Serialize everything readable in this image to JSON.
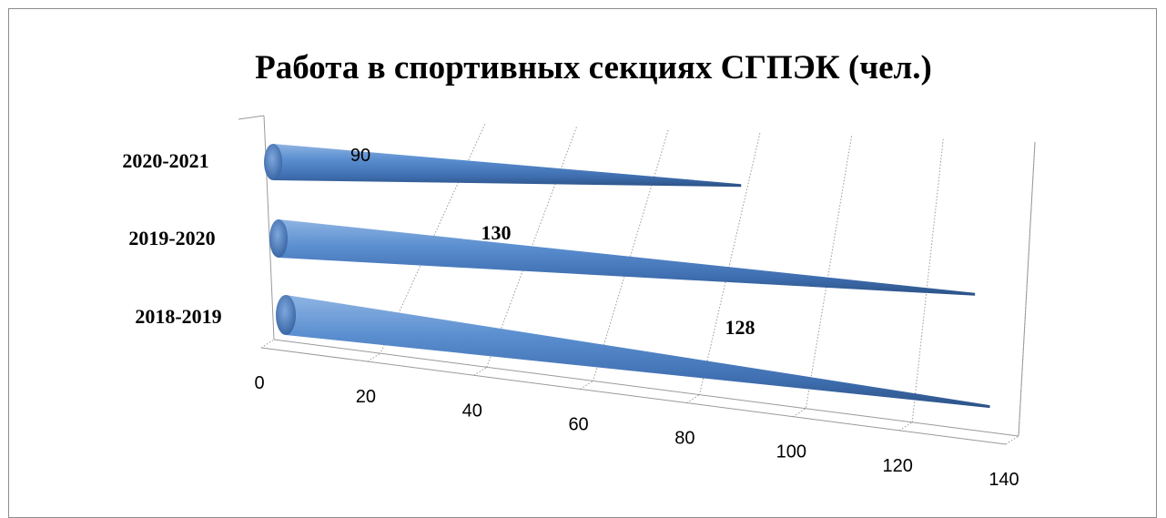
{
  "chart_data": {
    "type": "bar",
    "orientation": "horizontal",
    "shape": "3d-cone",
    "title": "Работа в спортивных секциях СГПЭК (чел.)",
    "categories": [
      "2018-2019",
      "2019-2020",
      "2020-2021"
    ],
    "values": [
      128,
      130,
      90
    ],
    "data_labels": [
      "128",
      "130",
      "90"
    ],
    "xlim": [
      0,
      140
    ],
    "x_ticks": [
      "0",
      "20",
      "40",
      "60",
      "80",
      "100",
      "120",
      "140"
    ],
    "xlabel": "",
    "ylabel": "",
    "grid": true,
    "legend": "none",
    "colors": {
      "bar": "#4f81bd",
      "bar_highlight": "#8fb4e3",
      "bar_shadow": "#2c5286"
    }
  }
}
